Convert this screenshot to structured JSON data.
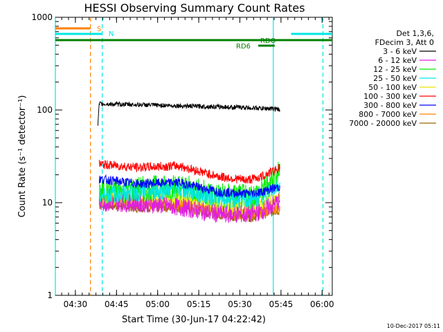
{
  "chart_data": {
    "type": "line",
    "title": "HESSI Observing Summary Count Rates",
    "xlabel": "Start Time (30-Jun-17 04:22:42)",
    "ylabel": "Count Rate (s⁻¹ detector⁻¹)",
    "yscale": "log",
    "ylim": [
      1,
      1000
    ],
    "xlim_minutes_from_start": [
      0,
      101
    ],
    "x_ticks": [
      "04:30",
      "04:45",
      "05:00",
      "05:15",
      "05:30",
      "05:45",
      "06:00"
    ],
    "x_tick_minutes": [
      7.3,
      22.3,
      37.3,
      52.3,
      67.3,
      82.3,
      97.3
    ],
    "y_ticks": [
      "1",
      "10",
      "100",
      "1000"
    ],
    "y_tick_values": [
      1,
      10,
      100,
      1000
    ],
    "legend_header": [
      "Det 1,3,6,",
      "FDecim 3, Att 0"
    ],
    "legend_position": "right",
    "series": [
      {
        "name": "3 - 6 keV",
        "color": "#000000",
        "x": [
          15.5,
          16,
          30,
          45,
          60,
          70,
          75,
          80,
          82
        ],
        "y": [
          68,
          116,
          114,
          111,
          108,
          106,
          104,
          103,
          100
        ]
      },
      {
        "name": "6 - 12 keV",
        "color": "#e01ee0",
        "x": [
          16,
          30,
          45,
          60,
          70,
          75,
          82
        ],
        "y": [
          10,
          10,
          9,
          7.5,
          7.5,
          8,
          10.5
        ]
      },
      {
        "name": "12 - 25 keV",
        "color": "#00ee00",
        "x": [
          16,
          30,
          45,
          60,
          70,
          75,
          82
        ],
        "y": [
          13,
          14,
          15,
          12,
          11.5,
          13,
          22
        ]
      },
      {
        "name": "25 - 50 keV",
        "color": "#00e6e6",
        "x": [
          16,
          30,
          45,
          60,
          70,
          75,
          82
        ],
        "y": [
          12,
          13,
          14,
          11,
          10.5,
          11.5,
          16
        ]
      },
      {
        "name": "50 - 100 keV",
        "color": "#e6e600",
        "x": [
          16,
          30,
          45,
          60,
          70,
          75,
          82
        ],
        "y": [
          11,
          11.5,
          11.5,
          9,
          8.5,
          9.5,
          12
        ]
      },
      {
        "name": "100 - 300 keV",
        "color": "#ff0000",
        "x": [
          16,
          30,
          45,
          60,
          70,
          75,
          82
        ],
        "y": [
          26,
          24,
          25,
          19,
          17.5,
          19,
          24
        ]
      },
      {
        "name": "300 - 800 keV",
        "color": "#0000ff",
        "x": [
          16,
          30,
          45,
          60,
          70,
          75,
          82
        ],
        "y": [
          18,
          16,
          16.5,
          13,
          12.5,
          13,
          15
        ]
      },
      {
        "name": "800 - 7000 keV",
        "color": "#ff8000",
        "x": [
          16,
          30,
          45,
          60,
          70,
          75,
          82
        ],
        "y": [
          11,
          10,
          9.5,
          8,
          7.5,
          8,
          9
        ]
      },
      {
        "name": "7000 - 20000 keV",
        "color": "#996600",
        "x": [
          16,
          30,
          45,
          60,
          70,
          75,
          82
        ],
        "y": [
          9.5,
          9,
          9,
          7.5,
          7,
          7.5,
          8.5
        ]
      }
    ],
    "flags": [
      {
        "label": "S",
        "color": "#ff8000",
        "x_start": 0,
        "x_end": 12.8
      },
      {
        "label": "N",
        "color": "#00e6e6",
        "x_start": 0,
        "x_end": 17.1
      },
      {
        "label": "N",
        "color": "#00e6e6",
        "x_start": 86,
        "x_end": 101
      },
      {
        "label": "RDO",
        "color": "#008000",
        "x_start": 0,
        "x_end": 101
      },
      {
        "label": "RD6",
        "color": "#008000",
        "x_start": 74,
        "x_end": 80
      }
    ],
    "vertical_markers": [
      {
        "color": "#00e6e6",
        "style": "solid",
        "x": 0
      },
      {
        "color": "#ff8000",
        "style": "dashed",
        "x": 12.8
      },
      {
        "color": "#00e6e6",
        "style": "dashed",
        "x": 17.1
      },
      {
        "color": "#00e6e6",
        "style": "solid",
        "x": 79.5
      },
      {
        "color": "#00e6e6",
        "style": "dashed",
        "x": 97.6
      }
    ]
  },
  "footer": {
    "date_stamp": "10-Dec-2017 05:11"
  }
}
